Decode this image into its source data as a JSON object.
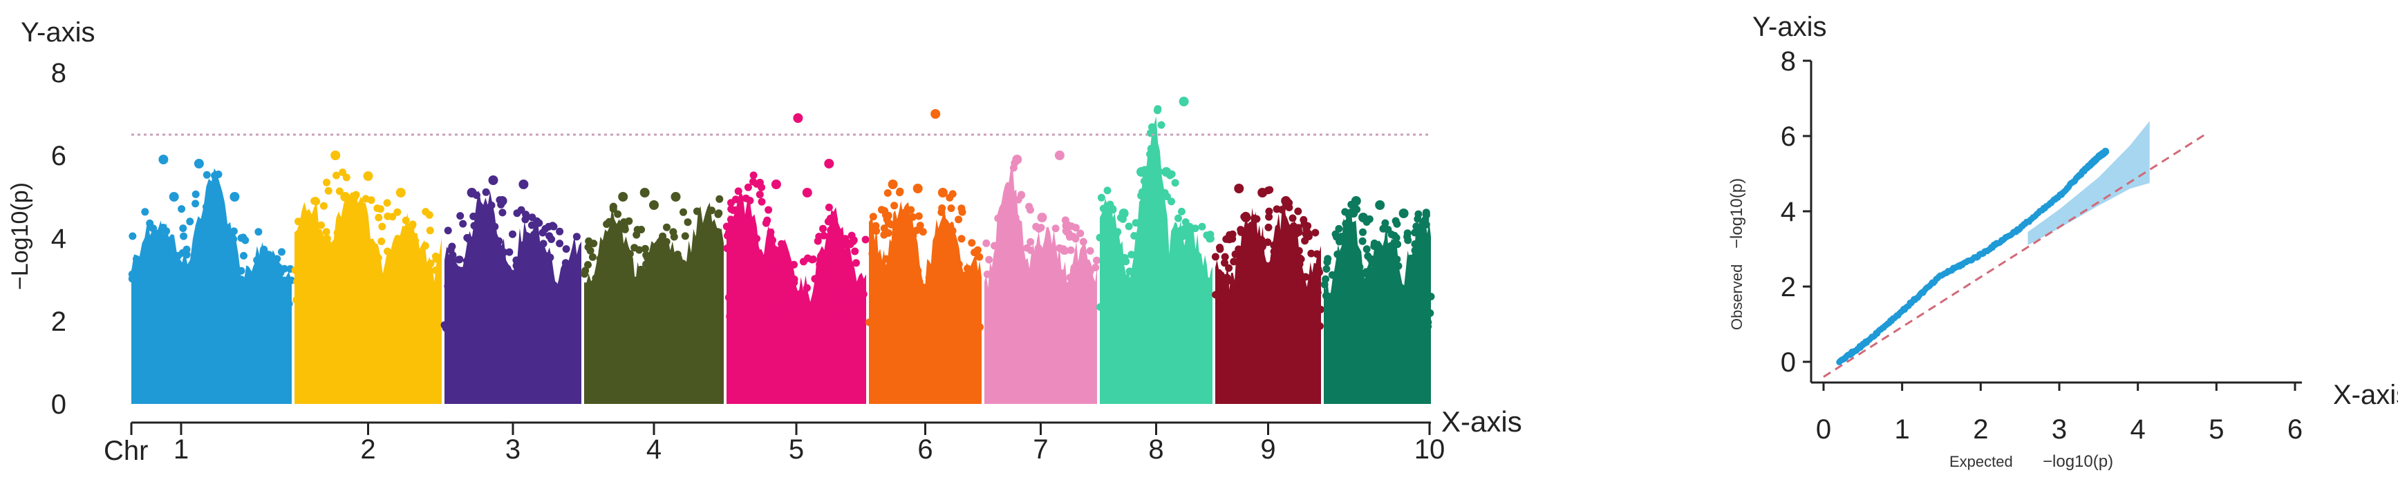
{
  "chart_data": [
    {
      "type": "scatter",
      "subtype": "manhattan",
      "title": "",
      "xlabel": "X-axis",
      "ylabel": "Y-axis",
      "ylabel_rotated": "−Log10(p)",
      "x_prefix": "Chr",
      "ylim": [
        0,
        8
      ],
      "yticks": [
        "0",
        "2",
        "4",
        "6",
        "8"
      ],
      "significance_threshold": 6.5,
      "threshold_color": "#c9a0b8",
      "grid": false,
      "legend": "none",
      "chromosomes": [
        {
          "chr": "1",
          "color": "#1f9ad6",
          "x_tick": "1",
          "peaks": [
            5.0,
            4.5,
            5.9,
            4.3,
            3.5
          ],
          "top_hits": [
            5.9,
            5.8,
            5.0,
            5.0
          ]
        },
        {
          "chr": "2",
          "color": "#fbc107",
          "x_tick": "2",
          "peaks": [
            4.6,
            5.9,
            5.1,
            4.7,
            4.6
          ],
          "top_hits": [
            6.0,
            5.5,
            5.1,
            5.0
          ]
        },
        {
          "chr": "3",
          "color": "#4a2a8a",
          "x_tick": "3",
          "peaks": [
            4.1,
            5.4,
            4.8,
            4.5,
            4.2
          ],
          "top_hits": [
            5.4,
            5.3,
            5.1,
            4.9
          ]
        },
        {
          "chr": "4",
          "color": "#4a5722",
          "x_tick": "4",
          "peaks": [
            3.9,
            5.0,
            4.0,
            4.9,
            5.1
          ],
          "top_hits": [
            5.1,
            5.0,
            5.0,
            4.8
          ]
        },
        {
          "chr": "5",
          "color": "#ea0d78",
          "x_tick": "5",
          "peaks": [
            4.9,
            5.7,
            3.2,
            4.9,
            4.0
          ],
          "top_hits": [
            6.9,
            5.8,
            5.3,
            5.1
          ]
        },
        {
          "chr": "6",
          "color": "#f5680f",
          "x_tick": "6",
          "peaks": [
            4.7,
            5.3,
            4.4,
            5.2,
            3.6
          ],
          "top_hits": [
            7.0,
            5.3,
            5.2,
            5.1
          ]
        },
        {
          "chr": "7",
          "color": "#ec8cbe",
          "x_tick": "7",
          "peaks": [
            4.3,
            6.0,
            4.3,
            4.5,
            3.6
          ],
          "top_hits": [
            6.0,
            5.9,
            4.5,
            4.3
          ]
        },
        {
          "chr": "8",
          "color": "#3fd2a4",
          "x_tick": "8",
          "peaks": [
            5.6,
            4.3,
            7.3,
            4.4,
            4.4
          ],
          "top_hits": [
            7.3,
            5.6,
            5.6,
            4.6
          ]
        },
        {
          "chr": "9",
          "color": "#8c0f26",
          "x_tick": "9",
          "peaks": [
            3.7,
            4.5,
            5.2,
            4.8,
            4.0
          ],
          "top_hits": [
            5.2,
            5.1,
            4.9,
            4.5
          ]
        },
        {
          "chr": "10",
          "color": "#0c7a5c",
          "x_tick": "10",
          "peaks": [
            3.7,
            4.9,
            4.4,
            4.5,
            4.8
          ],
          "top_hits": [
            4.9,
            4.8,
            4.6,
            4.5
          ]
        }
      ]
    },
    {
      "type": "scatter",
      "subtype": "qq",
      "title": "",
      "xlabel": "X-axis",
      "ylabel": "Y-axis",
      "xlabel_small": "Expected",
      "xlabel_small_unit": "−log10(p)",
      "ylabel_small": "Observed",
      "ylabel_small_unit": "−log10(p)",
      "xlim": [
        0,
        6
      ],
      "ylim": [
        0,
        8
      ],
      "xticks": [
        "0",
        "1",
        "2",
        "3",
        "4",
        "5",
        "6"
      ],
      "yticks": [
        "0",
        "2",
        "4",
        "6",
        "8"
      ],
      "grid": false,
      "legend": "none",
      "point_color": "#1f9ad6",
      "reference_line": {
        "x": [
          0,
          4.9
        ],
        "y": [
          -0.4,
          6.1
        ],
        "color": "#d16a78",
        "style": "dashed"
      },
      "confidence_band": {
        "color": "#5fb4e3",
        "x": [
          2.6,
          3.0,
          3.5,
          3.9,
          4.15
        ],
        "lower": [
          3.1,
          3.55,
          4.15,
          4.6,
          4.75
        ],
        "upper": [
          3.45,
          4.05,
          4.9,
          5.75,
          6.4
        ]
      },
      "observed_curve": {
        "x": [
          0.2,
          0.5,
          1.0,
          1.5,
          2.0,
          2.5,
          3.0,
          3.3,
          3.5,
          3.6
        ],
        "y": [
          0.0,
          0.45,
          1.35,
          2.3,
          2.85,
          3.55,
          4.4,
          5.05,
          5.45,
          5.6
        ]
      }
    }
  ]
}
